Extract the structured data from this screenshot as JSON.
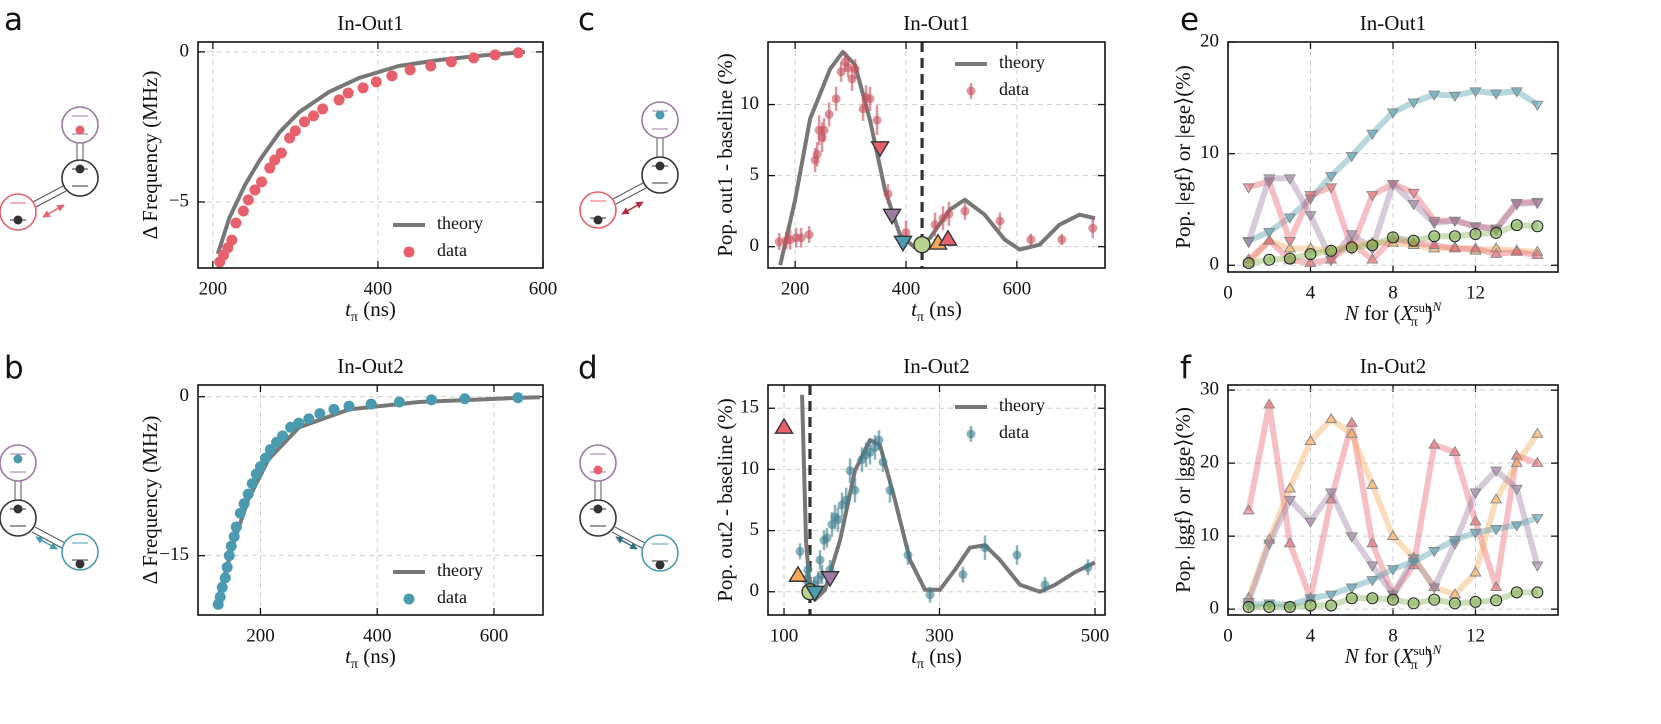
{
  "chart_data": [
    {
      "type": "scatter",
      "label": "a",
      "title": "In-Out1",
      "xlabel": [
        "t",
        "π",
        " (ns)"
      ],
      "ylabel": "Δ Frequency (MHz)",
      "xlim": [
        182,
        600
      ],
      "ylim": [
        -7.2,
        0.33
      ],
      "xticks": [
        200,
        400,
        600
      ],
      "yticks": [
        {
          "value": -5,
          "label": "−5"
        },
        0
      ],
      "grid": true,
      "legend": "lower right",
      "series": [
        {
          "name": "theory",
          "color": "#777777",
          "line": true,
          "x": [
            206,
            220,
            239,
            257,
            281,
            305,
            341,
            377,
            425,
            474,
            522,
            578
          ],
          "values": [
            -6.73,
            -5.53,
            -4.43,
            -3.6,
            -2.67,
            -2.0,
            -1.33,
            -0.87,
            -0.47,
            -0.27,
            -0.13,
            0
          ]
        },
        {
          "name": "data",
          "color": "#e8606b",
          "marker": "circle",
          "markersize": 5.5,
          "x": [
            208.4,
            213,
            218,
            223,
            228,
            237,
            243,
            251,
            259,
            269,
            275,
            283,
            293,
            300,
            311,
            322,
            333,
            353,
            364,
            382,
            398,
            417,
            439,
            464,
            489,
            516,
            542,
            570
          ],
          "values": [
            -7.0,
            -6.77,
            -6.53,
            -6.27,
            -5.7,
            -5.3,
            -4.93,
            -4.6,
            -4.33,
            -3.87,
            -3.6,
            -3.37,
            -2.87,
            -2.63,
            -2.33,
            -2.13,
            -1.9,
            -1.6,
            -1.37,
            -1.2,
            -1.0,
            -0.8,
            -0.6,
            -0.47,
            -0.33,
            -0.2,
            -0.1,
            -0.03
          ]
        }
      ]
    },
    {
      "type": "scatter",
      "label": "b",
      "title": "In-Out2",
      "xlabel": [
        "t",
        "π",
        " (ns)"
      ],
      "ylabel": "Δ Frequency (MHz)",
      "xlim": [
        93,
        684
      ],
      "ylim": [
        -20.6,
        1.1
      ],
      "xticks": [
        200,
        400,
        600
      ],
      "yticks": [
        {
          "value": -15,
          "label": "−15"
        },
        0
      ],
      "grid": true,
      "legend": "lower right",
      "series": [
        {
          "name": "theory",
          "color": "#777777",
          "line": true,
          "x": [
            124,
            136,
            153,
            179,
            214,
            266,
            352,
            472,
            645,
            679
          ],
          "values": [
            -19.7,
            -17.3,
            -14.0,
            -9.7,
            -5.9,
            -2.9,
            -1.2,
            -0.5,
            -0.1,
            -0.05
          ]
        },
        {
          "name": "data",
          "color": "#4a9bb0",
          "marker": "circle",
          "markersize": 5.5,
          "x": [
            127.6,
            131,
            134.5,
            139.7,
            143,
            146.6,
            150,
            155,
            158.6,
            165.5,
            172,
            179,
            186,
            193,
            200,
            208.6,
            217,
            227.6,
            238,
            251.7,
            265.5,
            282.8,
            301.7,
            325.9,
            351.7,
            389.7,
            438,
            493,
            550,
            641
          ],
          "values": [
            -19.6,
            -18.9,
            -18.0,
            -17.1,
            -16.1,
            -15.0,
            -14.1,
            -13.2,
            -12.3,
            -11.0,
            -10.1,
            -9.2,
            -8.2,
            -7.3,
            -6.6,
            -5.8,
            -5.0,
            -4.3,
            -3.7,
            -2.9,
            -2.5,
            -2.1,
            -1.6,
            -1.2,
            -0.9,
            -0.7,
            -0.5,
            -0.3,
            -0.2,
            -0.1
          ]
        }
      ]
    },
    {
      "type": "scatter",
      "label": "c",
      "title": "In-Out1",
      "xlabel": [
        "t",
        "π",
        " (ns)"
      ],
      "ylabel": "Pop. out1 - baseline (%)",
      "xlim": [
        151,
        759
      ],
      "ylim": [
        -1.5,
        14.4
      ],
      "xticks": [
        200,
        400,
        600
      ],
      "yticks": [
        0,
        5,
        10
      ],
      "grid": true,
      "legend": "upper right",
      "vline": 429,
      "series": [
        {
          "name": "theory",
          "color": "#777777",
          "line": true,
          "x": [
            173,
            200,
            227,
            263,
            286,
            308,
            335,
            362,
            389,
            416,
            443,
            479,
            506,
            542,
            578,
            605,
            641,
            677,
            713,
            741
          ],
          "values": [
            -1.3,
            3.3,
            9.0,
            12.5,
            13.7,
            12.8,
            8.9,
            4.0,
            0.85,
            -0.07,
            0.6,
            2.6,
            3.3,
            2.25,
            0.5,
            -0.2,
            0.14,
            1.55,
            2.25,
            2.0
          ]
        },
        {
          "name": "data",
          "color": "#c8505c",
          "marker": "circle",
          "markersize": 4.5,
          "alpha": 0.6,
          "x": [
            171.2,
            183.8,
            191,
            201.8,
            210.8,
            225.2,
            236,
            239.6,
            243.2,
            248.6,
            252.2,
            261.3,
            273.9,
            282.9,
            290.1,
            295.5,
            302.7,
            308.1,
            322.5,
            327.9,
            335.1,
            347.7,
            367.6,
            400,
            452.3,
            466.7,
            477.5,
            506.3,
            569.4,
            625.2,
            681.1,
            736.9
          ],
          "values": [
            0.35,
            0.42,
            0.49,
            0.63,
            0.63,
            0.85,
            6.1,
            6.5,
            8.2,
            7.7,
            8.2,
            9.3,
            10.4,
            12.3,
            13.0,
            12.6,
            11.8,
            12.5,
            9.7,
            10.5,
            10.4,
            8.9,
            3.7,
            1.0,
            1.55,
            2.0,
            2.3,
            2.5,
            1.8,
            0.5,
            0.5,
            1.3
          ],
          "errors": [
            0.6,
            0.6,
            0.7,
            0.7,
            0.7,
            0.6,
            0.85,
            0.85,
            1.05,
            1.05,
            0.85,
            0.85,
            0.85,
            0.7,
            0.7,
            0.7,
            0.85,
            0.7,
            0.85,
            0.85,
            0.85,
            1.05,
            0.7,
            0.85,
            0.85,
            0.85,
            0.85,
            0.6,
            0.6,
            0.4,
            0.4,
            0.7
          ]
        },
        {
          "color": "#e8606b",
          "marker": "triangle-down",
          "markersize": 9,
          "edgecolor": "#333333",
          "x": [
            353.2
          ],
          "values": [
            7.0
          ]
        },
        {
          "color": "#9c7aa3",
          "marker": "triangle-down",
          "markersize": 9,
          "edgecolor": "#333333",
          "x": [
            374.8
          ],
          "values": [
            2.25
          ]
        },
        {
          "color": "#4a9bb0",
          "marker": "triangle-down",
          "markersize": 9,
          "edgecolor": "#333333",
          "x": [
            394.6
          ],
          "values": [
            0.35
          ]
        },
        {
          "color": "#b5d38a",
          "marker": "circle",
          "markersize": 8,
          "edgecolor": "#333333",
          "x": [
            428.8
          ],
          "values": [
            0.14
          ]
        },
        {
          "color": "#f5a95a",
          "marker": "triangle-up",
          "markersize": 9,
          "edgecolor": "#333333",
          "x": [
            457.7
          ],
          "values": [
            0.21
          ]
        },
        {
          "color": "#e8606b",
          "marker": "triangle-up",
          "markersize": 9,
          "edgecolor": "#333333",
          "x": [
            475.7
          ],
          "values": [
            0.49
          ]
        }
      ]
    },
    {
      "type": "scatter",
      "label": "d",
      "title": "In-Out2",
      "xlabel": [
        "t",
        "π",
        " (ns)"
      ],
      "ylabel": "Pop. out2 - baseline (%)",
      "xlim": [
        79.4,
        512.9
      ],
      "ylim": [
        -1.9,
        16.9
      ],
      "xticks": [
        100,
        300,
        500
      ],
      "yticks": [
        0,
        5,
        10,
        15
      ],
      "grid": true,
      "legend": "upper right",
      "vline": 133.4,
      "series": [
        {
          "name": "theory",
          "color": "#777777",
          "line": true,
          "x": [
            123.2,
            128.3,
            133.4,
            139.7,
            152.7,
            172,
            191.3,
            210.6,
            223.4,
            242.7,
            262,
            281.4,
            300.6,
            320,
            339,
            358.5,
            377.8,
            403.5,
            429.3,
            448.6,
            474.3,
            500
          ],
          "values": [
            16.1,
            4.2,
            0.16,
            -0.65,
            0.16,
            4.2,
            9.9,
            12.4,
            12.0,
            7.5,
            2.6,
            0.16,
            0.16,
            1.8,
            3.6,
            3.8,
            2.6,
            0.57,
            0,
            0.57,
            1.6,
            2.4
          ]
        },
        {
          "name": "data",
          "color": "#3f7f8f",
          "marker": "circle",
          "markersize": 4.5,
          "alpha": 0.6,
          "x": [
            120.6,
            128.3,
            130.9,
            136,
            138.6,
            143.7,
            146.3,
            148.9,
            151.4,
            155.3,
            159.2,
            161.7,
            165.6,
            169.5,
            174.6,
            180,
            184.9,
            191.3,
            200.3,
            205.5,
            210.6,
            217,
            222.2,
            227.3,
            236.3,
            259.5,
            287.8,
            330.2,
            358.5,
            399.7,
            435.7,
            491
          ],
          "values": [
            3.3,
            1.0,
            1.8,
            0.16,
            0.57,
            1.0,
            2.6,
            1.4,
            4.2,
            4.4,
            1.8,
            5.5,
            6.1,
            5.9,
            7.1,
            7.5,
            9.9,
            8.3,
            10.8,
            11.2,
            11.4,
            11.8,
            12.4,
            10.6,
            8.3,
            3.0,
            -0.24,
            1.4,
            3.6,
            3.0,
            0.57,
            2.0
          ],
          "errors": [
            0.65,
            0.65,
            0.65,
            0.5,
            0.65,
            0.65,
            0.8,
            0.8,
            0.8,
            0.8,
            0.8,
            1.0,
            1.0,
            1.0,
            1.0,
            1.0,
            1.0,
            1.0,
            1.0,
            1.0,
            1.0,
            1.0,
            0.8,
            0.8,
            1.0,
            0.8,
            0.65,
            0.65,
            1.0,
            0.8,
            0.65,
            0.65
          ]
        },
        {
          "color": "#e8606b",
          "marker": "triangle-up",
          "markersize": 9,
          "edgecolor": "#333333",
          "x": [
            100
          ],
          "values": [
            13.4
          ]
        },
        {
          "color": "#f5a95a",
          "marker": "triangle-up",
          "markersize": 9,
          "edgecolor": "#333333",
          "x": [
            118
          ],
          "values": [
            1.3
          ]
        },
        {
          "color": "#b5d38a",
          "marker": "circle",
          "markersize": 8,
          "edgecolor": "#333333",
          "x": [
            133.4
          ],
          "values": [
            0
          ]
        },
        {
          "color": "#4a9bb0",
          "marker": "triangle-down",
          "markersize": 9,
          "edgecolor": "#333333",
          "x": [
            139.7
          ],
          "values": [
            0
          ]
        },
        {
          "color": "#9c7aa3",
          "marker": "triangle-down",
          "markersize": 9,
          "edgecolor": "#333333",
          "x": [
            159.2
          ],
          "values": [
            1.2
          ]
        }
      ]
    },
    {
      "type": "line",
      "label": "e",
      "title": "In-Out1",
      "xlabel": [
        "N",
        " for (",
        "X",
        "sub",
        "π",
        ")",
        "N"
      ],
      "ylabel": "Pop. |egf⟩ or |ege⟩(%)",
      "xlim": [
        0,
        16
      ],
      "ylim": [
        -0.6,
        20
      ],
      "xticks": [
        0,
        4,
        8,
        12
      ],
      "yticks": [
        0,
        10,
        20
      ],
      "grid": true,
      "x": [
        1,
        2,
        3,
        4,
        5,
        6,
        7,
        8,
        9,
        10,
        11,
        12,
        13,
        14,
        15
      ],
      "series": [
        {
          "color": "#4a9bb0",
          "marker": "triangle-down",
          "values": [
            2.2,
            3.0,
            4.3,
            6.0,
            8.0,
            9.8,
            11.8,
            13.7,
            14.6,
            15.3,
            15.2,
            15.6,
            15.4,
            15.6,
            14.4
          ]
        },
        {
          "color": "#e8606b",
          "marker": "triangle-down",
          "values": [
            7.0,
            7.5,
            2.2,
            6.3,
            7.0,
            1.5,
            6.3,
            7.3,
            6.5,
            4.0,
            4.0,
            3.5,
            3.3,
            5.6,
            5.7
          ]
        },
        {
          "color": "#9c7aa3",
          "marker": "triangle-down",
          "values": [
            2.1,
            7.8,
            7.8,
            4.5,
            0.5,
            2.8,
            1.5,
            7.3,
            5.5,
            3.8,
            4.0,
            3.5,
            3.2,
            5.5,
            5.6
          ]
        },
        {
          "color": "#f5a95a",
          "marker": "triangle-up",
          "values": [
            0.2,
            2.2,
            1.5,
            1.5,
            1.3,
            1.8,
            2.0,
            2.0,
            1.8,
            1.5,
            1.6,
            1.3,
            1.5,
            1.3,
            1.2
          ]
        },
        {
          "color": "#e8606b",
          "marker": "triangle-up",
          "values": [
            0.5,
            2.2,
            0.5,
            0.2,
            0.5,
            2.0,
            0.5,
            2.4,
            2.0,
            1.8,
            1.5,
            1.5,
            1.0,
            1.2,
            0.9
          ]
        },
        {
          "color": "#7fae4f",
          "marker": "circle",
          "values": [
            0.2,
            0.5,
            0.6,
            1.0,
            1.3,
            1.6,
            1.8,
            2.5,
            2.2,
            2.6,
            2.6,
            2.8,
            2.9,
            3.6,
            3.5
          ]
        }
      ]
    },
    {
      "type": "line",
      "label": "f",
      "title": "In-Out2",
      "xlabel": [
        "N",
        " for (",
        "X",
        "sub",
        "π",
        ")",
        "N"
      ],
      "ylabel": "Pop. |ggf⟩ or |gge⟩(%)",
      "xlim": [
        0,
        16
      ],
      "ylim": [
        -0.8,
        30.7
      ],
      "xticks": [
        0,
        4,
        8,
        12
      ],
      "yticks": [
        0,
        10,
        20,
        30
      ],
      "grid": true,
      "x": [
        1,
        2,
        3,
        4,
        5,
        6,
        7,
        8,
        9,
        10,
        11,
        12,
        13,
        14,
        15
      ],
      "series": [
        {
          "color": "#e8606b",
          "marker": "triangle-up",
          "values": [
            13.5,
            28.0,
            9.0,
            1.5,
            15.0,
            25.5,
            9.0,
            2.0,
            6.0,
            22.5,
            21.5,
            12.0,
            3.0,
            21.0,
            20.0
          ]
        },
        {
          "color": "#f5a95a",
          "marker": "triangle-up",
          "values": [
            1.5,
            9.5,
            16.5,
            23.0,
            26.0,
            24.0,
            17.0,
            10.0,
            7.0,
            3.0,
            2.0,
            5.0,
            15.0,
            20.0,
            24.0
          ]
        },
        {
          "color": "#9c7aa3",
          "marker": "triangle-down",
          "values": [
            1.0,
            9.0,
            15.0,
            12.0,
            16.0,
            10.0,
            6.0,
            2.0,
            7.0,
            3.0,
            9.0,
            16.0,
            19.0,
            16.5,
            6.0
          ]
        },
        {
          "color": "#4a9bb0",
          "marker": "triangle-down",
          "values": [
            0.5,
            0.8,
            0.5,
            1.5,
            2.0,
            3.0,
            4.0,
            5.5,
            6.5,
            8.0,
            9.5,
            10.5,
            11.0,
            11.5,
            12.5
          ]
        },
        {
          "color": "#7fae4f",
          "marker": "circle",
          "values": [
            0.3,
            0.3,
            0.3,
            0.5,
            0.5,
            1.5,
            1.5,
            1.3,
            0.8,
            1.3,
            0.8,
            1.0,
            1.2,
            2.3,
            2.3
          ]
        }
      ]
    }
  ]
}
